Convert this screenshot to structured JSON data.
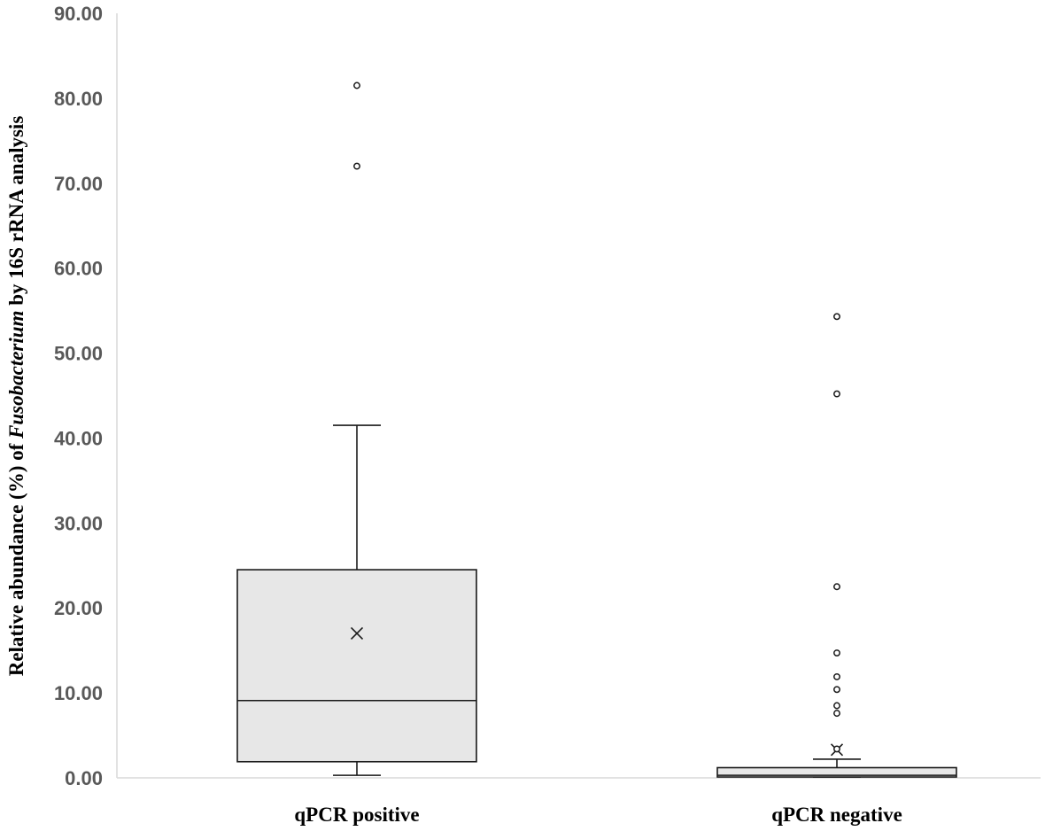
{
  "chart_data": {
    "type": "box",
    "y_axis": {
      "min": 0,
      "max": 90,
      "step": 10,
      "tick_labels": [
        "0.00",
        "10.00",
        "20.00",
        "30.00",
        "40.00",
        "50.00",
        "60.00",
        "70.00",
        "80.00",
        "90.00"
      ]
    },
    "ylabel": {
      "before": "Relative abundance (%) of ",
      "italic": "Fusobacterium",
      "after": " by 16S rRNA analysis"
    },
    "categories": [
      "qPCR positive",
      "qPCR negative"
    ],
    "boxes": [
      {
        "category": "qPCR positive",
        "whisker_low": 0.3,
        "q1": 1.9,
        "median": 9.1,
        "q3": 24.5,
        "whisker_high": 41.5,
        "mean": 17.0,
        "outliers": [
          72.0,
          81.5
        ]
      },
      {
        "category": "qPCR negative",
        "whisker_low": 0.1,
        "q1": 0.1,
        "median": 0.3,
        "q3": 1.2,
        "whisker_high": 2.2,
        "mean": 3.3,
        "outliers": [
          3.4,
          7.6,
          8.5,
          10.4,
          11.9,
          14.7,
          22.5,
          45.2,
          54.3
        ]
      }
    ],
    "colors": {
      "box_fill": "#e7e7e7",
      "stroke": "#1a1a1a",
      "axis": "#d9d9d9",
      "tick_text": "#595959"
    },
    "grid": false,
    "legend": "none"
  }
}
